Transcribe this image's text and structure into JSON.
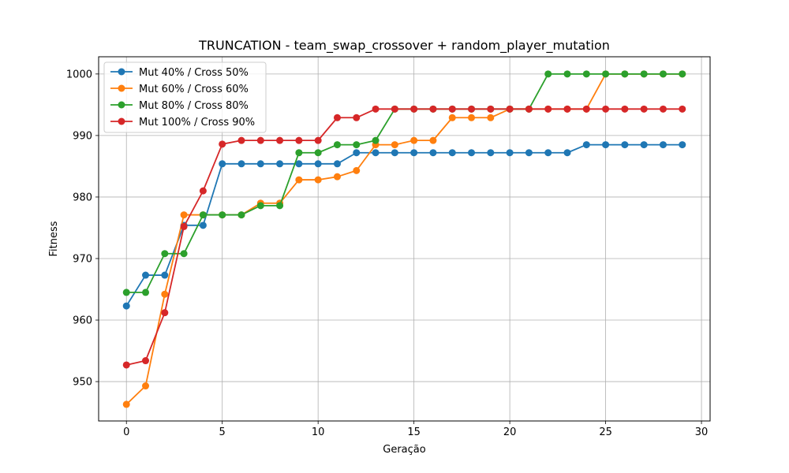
{
  "chart_data": {
    "type": "line",
    "title": "TRUNCATION - team_swap_crossover + random_player_mutation",
    "xlabel": "Geração",
    "ylabel": "Fitness",
    "xlim": [
      -1.45,
      30.45
    ],
    "ylim": [
      943.6,
      1002.8
    ],
    "xticks": [
      0,
      5,
      10,
      15,
      20,
      25,
      30
    ],
    "yticks": [
      950,
      960,
      970,
      980,
      990,
      1000
    ],
    "grid": true,
    "legend_position": "top-left",
    "x": [
      0,
      1,
      2,
      3,
      4,
      5,
      6,
      7,
      8,
      9,
      10,
      11,
      12,
      13,
      14,
      15,
      16,
      17,
      18,
      19,
      20,
      21,
      22,
      23,
      24,
      25,
      26,
      27,
      28,
      29
    ],
    "series": [
      {
        "name": "Mut 40% / Cross 50%",
        "color": "#1f77b4",
        "values": [
          962.3,
          967.3,
          967.3,
          975.4,
          975.4,
          985.4,
          985.4,
          985.4,
          985.4,
          985.4,
          985.4,
          985.4,
          987.2,
          987.2,
          987.2,
          987.2,
          987.2,
          987.2,
          987.2,
          987.2,
          987.2,
          987.2,
          987.2,
          987.2,
          988.5,
          988.5,
          988.5,
          988.5,
          988.5,
          988.5
        ]
      },
      {
        "name": "Mut 60% / Cross 60%",
        "color": "#ff7f0e",
        "values": [
          946.3,
          949.3,
          964.2,
          977.1,
          977.1,
          977.1,
          977.1,
          979.0,
          979.0,
          982.8,
          982.8,
          983.3,
          984.3,
          988.5,
          988.5,
          989.2,
          989.2,
          992.9,
          992.9,
          992.9,
          994.3,
          994.3,
          994.3,
          994.3,
          994.3,
          1000.0,
          1000.0,
          1000.0,
          1000.0,
          1000.0
        ]
      },
      {
        "name": "Mut 80% / Cross 80%",
        "color": "#2ca02c",
        "values": [
          964.5,
          964.5,
          970.8,
          970.8,
          977.1,
          977.1,
          977.1,
          978.6,
          978.6,
          987.2,
          987.2,
          988.5,
          988.5,
          989.2,
          994.3,
          994.3,
          994.3,
          994.3,
          994.3,
          994.3,
          994.3,
          994.3,
          1000.0,
          1000.0,
          1000.0,
          1000.0,
          1000.0,
          1000.0,
          1000.0,
          1000.0
        ]
      },
      {
        "name": "Mut 100% / Cross 90%",
        "color": "#d62728",
        "values": [
          952.7,
          953.4,
          961.2,
          975.2,
          981.0,
          988.6,
          989.2,
          989.2,
          989.2,
          989.2,
          989.2,
          992.9,
          992.9,
          994.3,
          994.3,
          994.3,
          994.3,
          994.3,
          994.3,
          994.3,
          994.3,
          994.3,
          994.3,
          994.3,
          994.3,
          994.3,
          994.3,
          994.3,
          994.3,
          994.3
        ]
      }
    ]
  }
}
